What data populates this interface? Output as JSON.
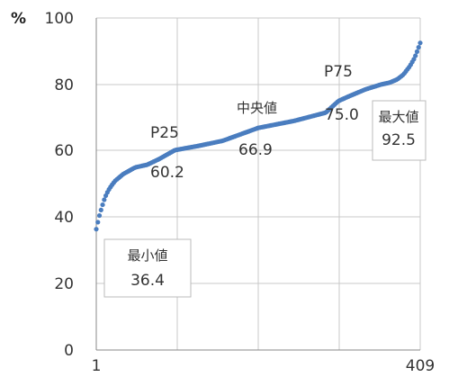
{
  "chart_data": {
    "type": "scatter",
    "unit_label": "%",
    "ylim": [
      0,
      100
    ],
    "yticks": [
      "0",
      "20",
      "40",
      "60",
      "80",
      "100"
    ],
    "xlim": [
      1,
      409
    ],
    "xticks": [
      "1",
      "409"
    ],
    "grid": true,
    "series_color": "#4a7dbf",
    "anchors": [
      [
        1,
        36.4
      ],
      [
        3,
        38.5
      ],
      [
        5,
        40.5
      ],
      [
        8,
        43
      ],
      [
        12,
        46
      ],
      [
        16,
        48
      ],
      [
        20,
        49.5
      ],
      [
        25,
        51
      ],
      [
        35,
        53
      ],
      [
        50,
        55
      ],
      [
        65,
        55.8
      ],
      [
        80,
        57.5
      ],
      [
        100,
        60.2
      ],
      [
        130,
        61.5
      ],
      [
        160,
        63
      ],
      [
        205,
        66.9
      ],
      [
        250,
        69
      ],
      [
        290,
        71.5
      ],
      [
        306,
        75.0
      ],
      [
        320,
        76.5
      ],
      [
        340,
        78.5
      ],
      [
        360,
        80
      ],
      [
        370,
        80.5
      ],
      [
        380,
        81.5
      ],
      [
        388,
        83
      ],
      [
        396,
        85.5
      ],
      [
        402,
        88
      ],
      [
        406,
        90.5
      ],
      [
        409,
        92.5
      ]
    ],
    "annotations": {
      "p25_label": "P25",
      "p25_value": "60.2",
      "median_label": "中央値",
      "median_value": "66.9",
      "p75_label": "P75",
      "p75_value": "75.0",
      "max_label": "最大値",
      "max_value": "92.5",
      "min_label": "最小値",
      "min_value": "36.4"
    }
  }
}
